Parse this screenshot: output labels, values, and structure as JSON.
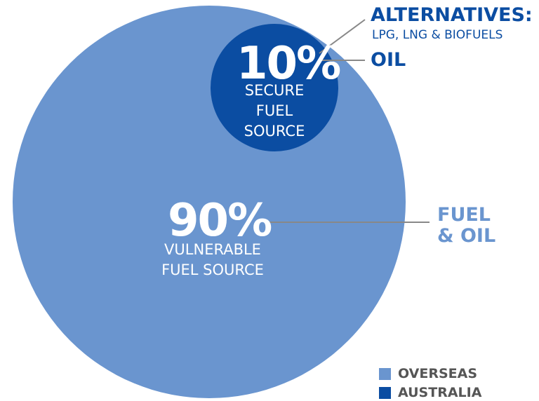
{
  "chart_data": {
    "type": "pie",
    "slices": [
      {
        "name": "OVERSEAS",
        "value": 90,
        "pct_label": "90%",
        "description": "VULNERABLE FUEL SOURCE",
        "callout": "FUEL & OIL"
      },
      {
        "name": "AUSTRALIA",
        "value": 10,
        "pct_label": "10%",
        "description": "SECURE FUEL SOURCE",
        "callout": "OIL"
      }
    ],
    "annotations": {
      "alternatives_title": "ALTERNATIVES:",
      "alternatives_sub": "LPG, LNG & BIOFUELS",
      "overseas_line1": "VULNERABLE",
      "overseas_line2": "FUEL SOURCE",
      "australia_line1": "SECURE",
      "australia_line2": "FUEL",
      "australia_line3": "SOURCE",
      "fuel_line1": "FUEL",
      "fuel_line2": "& OIL"
    },
    "legend": [
      {
        "label": "OVERSEAS",
        "color": "#6a95cf"
      },
      {
        "label": "AUSTRALIA",
        "color": "#0b4da2"
      }
    ],
    "legend_position": "bottom-right"
  },
  "colors": {
    "overseas": "#6a95cf",
    "australia": "#0b4da2",
    "leader_line": "#888888"
  }
}
